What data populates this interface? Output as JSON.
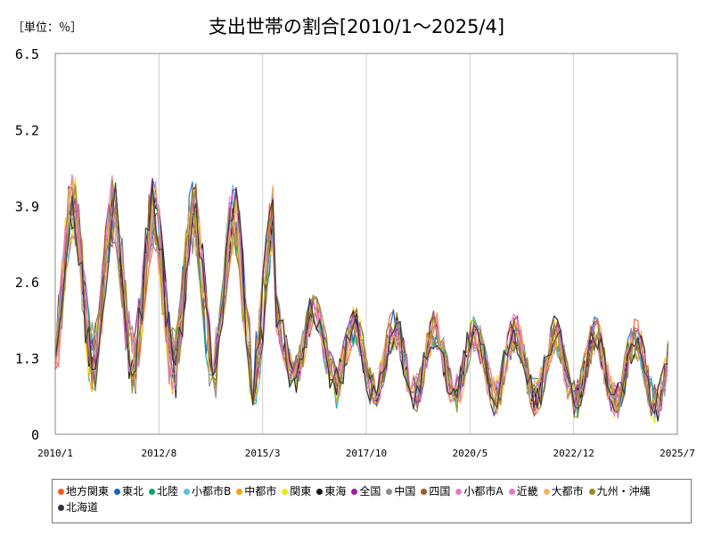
{
  "unit_label": "［単位：％］",
  "chart_data": {
    "type": "line",
    "title": "支出世帯の割合[2010/1～2025/4]",
    "xlabel": "",
    "ylabel": "",
    "ylim": [
      0,
      6.5
    ],
    "xlim": [
      "2010-01",
      "2025-07"
    ],
    "y_ticks": [
      "0",
      "1.3",
      "2.6",
      "3.9",
      "5.2",
      "6.5"
    ],
    "x_ticks": [
      "2010/1",
      "2012/8",
      "2015/3",
      "2017/10",
      "2020/5",
      "2022/12",
      "2025/7"
    ],
    "grid": "vertical",
    "legend_position": "bottom",
    "series": [
      {
        "name": "地方関東",
        "color": "#f25a1e"
      },
      {
        "name": "東北",
        "color": "#1464d2"
      },
      {
        "name": "北陸",
        "color": "#14a06e"
      },
      {
        "name": "小都市B",
        "color": "#55bff0"
      },
      {
        "name": "中都市",
        "color": "#f2a30f"
      },
      {
        "name": "関東",
        "color": "#f5e614"
      },
      {
        "name": "東海",
        "color": "#141414"
      },
      {
        "name": "全国",
        "color": "#9b1ea0"
      },
      {
        "name": "中国",
        "color": "#8c8c8c"
      },
      {
        "name": "四国",
        "color": "#a05a28"
      },
      {
        "name": "小都市A",
        "color": "#e678c8"
      },
      {
        "name": "近畿",
        "color": "#e678c8"
      },
      {
        "name": "大都市",
        "color": "#f5b464"
      },
      {
        "name": "九州・沖縄",
        "color": "#968c28"
      },
      {
        "name": "北海道",
        "color": "#32323c"
      }
    ]
  }
}
